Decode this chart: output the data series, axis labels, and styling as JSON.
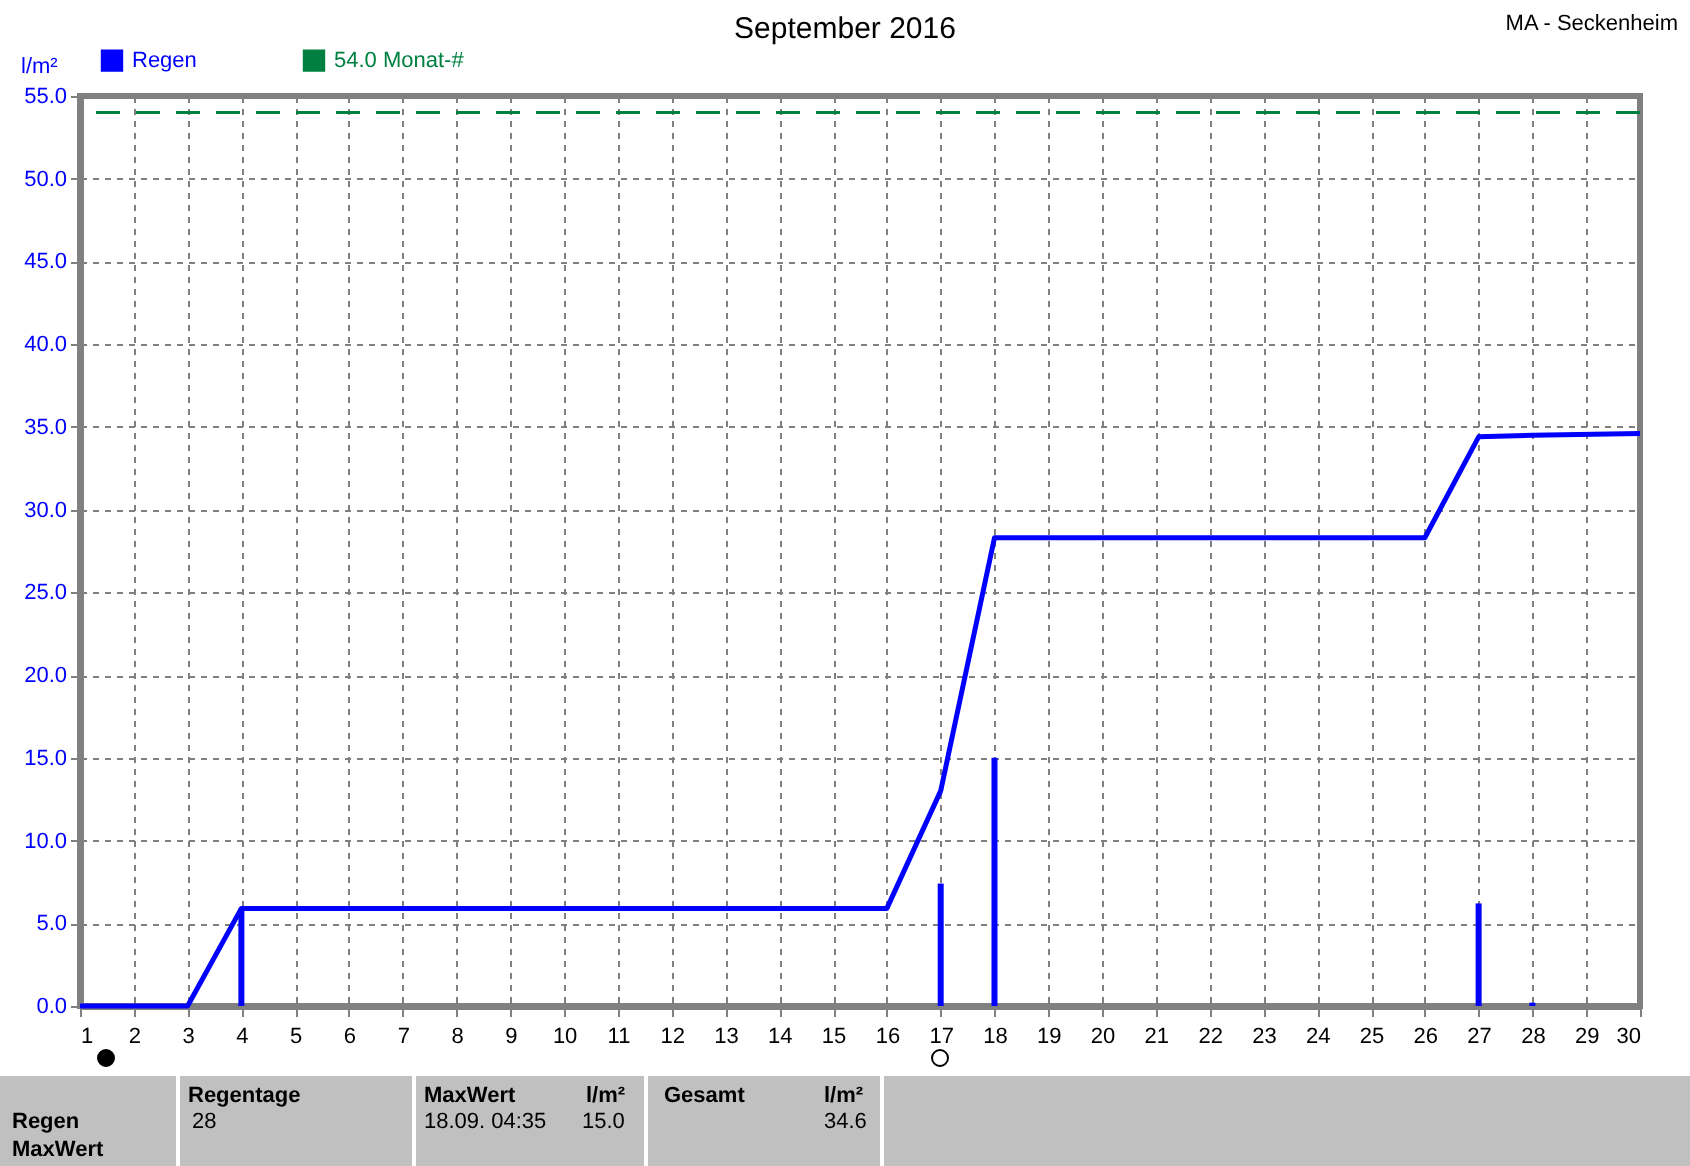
{
  "chart_data": {
    "type": "bar",
    "title": "September 2016",
    "subtitle": "MA - Seckenheim",
    "ylabel": "l/m²",
    "series": [
      {
        "name": "Regen",
        "color": "#0000ff",
        "x": [
          4,
          17,
          18,
          27,
          28
        ],
        "values": [
          5.9,
          7.4,
          15.0,
          6.2,
          0.2
        ]
      },
      {
        "type": "line",
        "color": "#0000ff",
        "x": [
          1,
          3,
          4,
          16,
          17,
          18,
          26,
          27,
          28,
          30
        ],
        "values": [
          0,
          0,
          5.9,
          5.9,
          13.0,
          28.3,
          28.3,
          34.4,
          34.5,
          34.6
        ]
      }
    ],
    "ref_lines": [
      {
        "axis": "y",
        "value": 54.0,
        "label": "54.0 Monat-#",
        "color": "#008040",
        "line_style": "dashed"
      }
    ],
    "xlim": [
      1,
      30
    ],
    "xticks": [
      1,
      2,
      3,
      4,
      5,
      6,
      7,
      8,
      9,
      10,
      11,
      12,
      13,
      14,
      15,
      16,
      17,
      18,
      19,
      20,
      21,
      22,
      23,
      24,
      25,
      26,
      27,
      28,
      29,
      30
    ],
    "ylim": [
      0,
      55
    ],
    "yticks": [
      {
        "value": 0,
        "label": "0.0"
      },
      {
        "value": 5,
        "label": "5.0"
      },
      {
        "value": 10,
        "label": "10.0"
      },
      {
        "value": 15,
        "label": "15.0"
      },
      {
        "value": 20,
        "label": "20.0"
      },
      {
        "value": 25,
        "label": "25.0"
      },
      {
        "value": 30,
        "label": "30.0"
      },
      {
        "value": 35,
        "label": "35.0"
      },
      {
        "value": 40,
        "label": "40.0"
      },
      {
        "value": 45,
        "label": "45.0"
      },
      {
        "value": 50,
        "label": "50.0"
      },
      {
        "value": 55,
        "label": "55.0"
      }
    ],
    "grid": true,
    "legend": "top left",
    "annotations": [
      "Regen",
      "Regentage",
      "28",
      "MaxWert",
      "18.09.  04:35",
      "l/m²",
      "15.0",
      "Gesamt",
      "l/m²",
      "34.6",
      "MaxWert"
    ]
  }
}
